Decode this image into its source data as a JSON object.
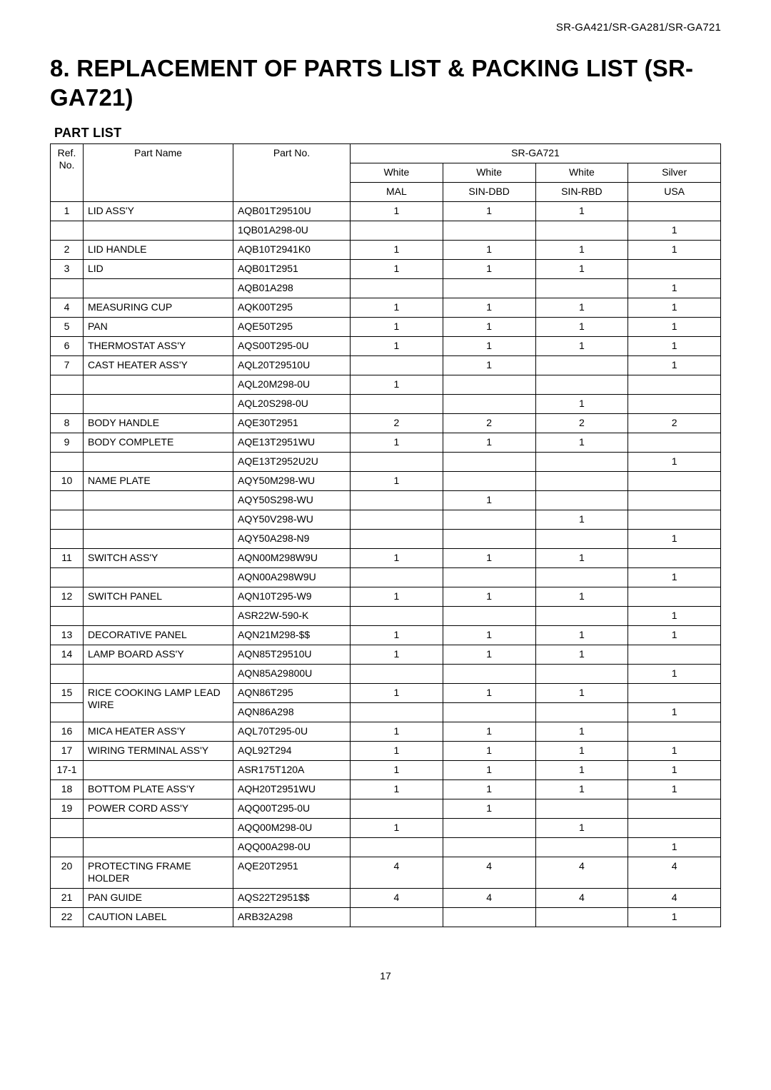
{
  "header": {
    "models": "SR-GA421/SR-GA281/SR-GA721"
  },
  "title": "8. REPLACEMENT OF PARTS LIST & PACKING LIST (SR-GA721)",
  "subheading": "PART LIST",
  "page_number": "17",
  "table": {
    "header": {
      "ref_no": "Ref. No.",
      "part_name": "Part Name",
      "part_no": "Part No.",
      "group": "SR-GA721",
      "variants": {
        "color": [
          "White",
          "White",
          "White",
          "Silver"
        ],
        "region": [
          "MAL",
          "SIN-DBD",
          "SIN-RBD",
          "USA"
        ]
      }
    },
    "rows": [
      {
        "ref": "1",
        "name": "LID ASS'Y",
        "partno": "AQB01T29510U",
        "v": [
          "1",
          "1",
          "1",
          ""
        ]
      },
      {
        "ref": "",
        "name": "",
        "partno": "1QB01A298-0U",
        "v": [
          "",
          "",
          "",
          "1"
        ]
      },
      {
        "ref": "2",
        "name": "LID HANDLE",
        "partno": "AQB10T2941K0",
        "v": [
          "1",
          "1",
          "1",
          "1"
        ]
      },
      {
        "ref": "3",
        "name": "LID",
        "partno": "AQB01T2951",
        "v": [
          "1",
          "1",
          "1",
          ""
        ]
      },
      {
        "ref": "",
        "name": "",
        "partno": "AQB01A298",
        "v": [
          "",
          "",
          "",
          "1"
        ]
      },
      {
        "ref": "4",
        "name": "MEASURING CUP",
        "partno": "AQK00T295",
        "v": [
          "1",
          "1",
          "1",
          "1"
        ]
      },
      {
        "ref": "5",
        "name": "PAN",
        "partno": "AQE50T295",
        "v": [
          "1",
          "1",
          "1",
          "1"
        ]
      },
      {
        "ref": "6",
        "name": "THERMOSTAT ASS'Y",
        "partno": "AQS00T295-0U",
        "v": [
          "1",
          "1",
          "1",
          "1"
        ]
      },
      {
        "ref": "7",
        "name": "CAST HEATER ASS'Y",
        "partno": "AQL20T29510U",
        "v": [
          "",
          "1",
          "",
          "1"
        ]
      },
      {
        "ref": "",
        "name": "",
        "partno": "AQL20M298-0U",
        "v": [
          "1",
          "",
          "",
          ""
        ]
      },
      {
        "ref": "",
        "name": "",
        "partno": "AQL20S298-0U",
        "v": [
          "",
          "",
          "1",
          ""
        ]
      },
      {
        "ref": "8",
        "name": "BODY HANDLE",
        "partno": "AQE30T2951",
        "v": [
          "2",
          "2",
          "2",
          "2"
        ]
      },
      {
        "ref": "9",
        "name": "BODY COMPLETE",
        "partno": "AQE13T2951WU",
        "v": [
          "1",
          "1",
          "1",
          ""
        ]
      },
      {
        "ref": "",
        "name": "",
        "partno": "AQE13T2952U2U",
        "v": [
          "",
          "",
          "",
          "1"
        ]
      },
      {
        "ref": "10",
        "name": "NAME PLATE",
        "partno": "AQY50M298-WU",
        "v": [
          "1",
          "",
          "",
          ""
        ]
      },
      {
        "ref": "",
        "name": "",
        "partno": "AQY50S298-WU",
        "v": [
          "",
          "1",
          "",
          ""
        ]
      },
      {
        "ref": "",
        "name": "",
        "partno": "AQY50V298-WU",
        "v": [
          "",
          "",
          "1",
          ""
        ]
      },
      {
        "ref": "",
        "name": "",
        "partno": "AQY50A298-N9",
        "v": [
          "",
          "",
          "",
          "1"
        ]
      },
      {
        "ref": "11",
        "name": "SWITCH ASS'Y",
        "partno": "AQN00M298W9U",
        "v": [
          "1",
          "1",
          "1",
          ""
        ]
      },
      {
        "ref": "",
        "name": "",
        "partno": "AQN00A298W9U",
        "v": [
          "",
          "",
          "",
          "1"
        ]
      },
      {
        "ref": "12",
        "name": "SWITCH PANEL",
        "partno": "AQN10T295-W9",
        "v": [
          "1",
          "1",
          "1",
          ""
        ]
      },
      {
        "ref": "",
        "name": "",
        "partno": "ASR22W-590-K",
        "v": [
          "",
          "",
          "",
          "1"
        ]
      },
      {
        "ref": "13",
        "name": "DECORATIVE PANEL",
        "partno": "AQN21M298-$$",
        "v": [
          "1",
          "1",
          "1",
          "1"
        ]
      },
      {
        "ref": "14",
        "name": "LAMP BOARD ASS'Y",
        "partno": "AQN85T29510U",
        "v": [
          "1",
          "1",
          "1",
          ""
        ]
      },
      {
        "ref": "",
        "name": "",
        "partno": "AQN85A29800U",
        "v": [
          "",
          "",
          "",
          "1"
        ]
      },
      {
        "ref": "15",
        "name": "RICE COOKING LAMP LEAD WIRE",
        "partno": "AQN86T295",
        "v": [
          "1",
          "1",
          "1",
          ""
        ],
        "name_rowspan": 2
      },
      {
        "ref": "",
        "name": "__SPAN__",
        "partno": "AQN86A298",
        "v": [
          "",
          "",
          "",
          "1"
        ]
      },
      {
        "ref": "16",
        "name": "MICA HEATER ASS'Y",
        "partno": "AQL70T295-0U",
        "v": [
          "1",
          "1",
          "1",
          ""
        ]
      },
      {
        "ref": "17",
        "name": "WIRING TERMINAL ASS'Y",
        "partno": "AQL92T294",
        "v": [
          "1",
          "1",
          "1",
          "1"
        ],
        "dashed": true
      },
      {
        "ref": "17-1",
        "name": "",
        "partno": "ASR175T120A",
        "v": [
          "1",
          "1",
          "1",
          "1"
        ]
      },
      {
        "ref": "18",
        "name": "BOTTOM PLATE ASS'Y",
        "partno": "AQH20T2951WU",
        "v": [
          "1",
          "1",
          "1",
          "1"
        ]
      },
      {
        "ref": "19",
        "name": "POWER CORD ASS'Y",
        "partno": "AQQ00T295-0U",
        "v": [
          "",
          "1",
          "",
          ""
        ]
      },
      {
        "ref": "",
        "name": "",
        "partno": "AQQ00M298-0U",
        "v": [
          "1",
          "",
          "1",
          ""
        ]
      },
      {
        "ref": "",
        "name": "",
        "partno": "AQQ00A298-0U",
        "v": [
          "",
          "",
          "",
          "1"
        ]
      },
      {
        "ref": "20",
        "name": "PROTECTING FRAME HOLDER",
        "partno": "AQE20T2951",
        "v": [
          "4",
          "4",
          "4",
          "4"
        ]
      },
      {
        "ref": "21",
        "name": "PAN GUIDE",
        "partno": "AQS22T2951$$",
        "v": [
          "4",
          "4",
          "4",
          "4"
        ]
      },
      {
        "ref": "22",
        "name": "CAUTION LABEL",
        "partno": "ARB32A298",
        "v": [
          "",
          "",
          "",
          "1"
        ]
      }
    ]
  }
}
